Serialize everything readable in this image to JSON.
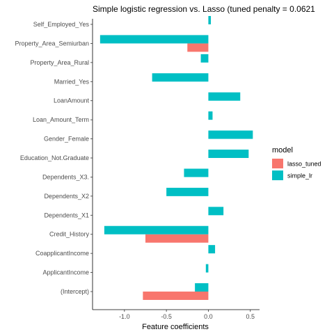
{
  "chart_data": {
    "type": "bar",
    "orientation": "horizontal",
    "title": "Simple logistic regression vs. Lasso (tuned penalty = 0.0621",
    "xlabel": "Feature coefficients",
    "ylabel": "",
    "xlim": [
      -1.38,
      0.61
    ],
    "xticks": [
      -1.0,
      -0.5,
      0.0,
      0.5
    ],
    "xtick_labels": [
      "-1.0",
      "-0.5",
      "0.0",
      "0.5"
    ],
    "grid": false,
    "legend_position": "right",
    "categories": [
      "Self_Employed_Yes",
      "Property_Area_Semiurban",
      "Property_Area_Rural",
      "Married_Yes",
      "LoanAmount",
      "Loan_Amount_Term",
      "Gender_Female",
      "Education_Not.Graduate",
      "Dependents_X3.",
      "Dependents_X2",
      "Dependents_X1",
      "Credit_History",
      "CoapplicantIncome",
      "ApplicantIncome",
      "(Intercept)"
    ],
    "legend_title": "model",
    "series": [
      {
        "name": "lasso_tuned",
        "color": "#F8766D",
        "values": [
          0,
          -0.25,
          0,
          0,
          0,
          0,
          0,
          0,
          0,
          0,
          0,
          -0.75,
          0,
          0,
          -0.78
        ]
      },
      {
        "name": "simple_lr",
        "color": "#00BFC4",
        "values": [
          0.03,
          -1.29,
          -0.09,
          -0.67,
          0.38,
          0.05,
          0.53,
          0.48,
          -0.29,
          -0.5,
          0.18,
          -1.24,
          0.08,
          -0.03,
          -0.16
        ]
      }
    ]
  }
}
